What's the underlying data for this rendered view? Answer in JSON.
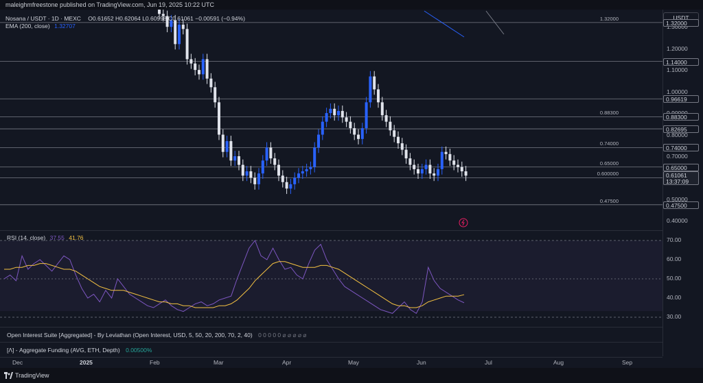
{
  "header": {
    "published": "maleighmfreestone published on TradingView.com, Jun 19, 2025 10:22 UTC"
  },
  "legend": {
    "symbol": "Nosana / USDT · 1D · MEXC",
    "ohlc": "O0.61652 H0.62064 L0.60998 C0.61061 −0.00591 (−0.94%)",
    "ema_label": "EMA (200, close)",
    "ema_value": "1.32707"
  },
  "currency_button": "USDT",
  "price_axis": {
    "labels": [
      "1.30000",
      "1.20000",
      "1.10000",
      "1.00000",
      "0.90000",
      "0.80000",
      "0.70000",
      "0.50000",
      "0.40000"
    ],
    "levels": [
      {
        "text": "1.32000",
        "line": "1.32000"
      },
      {
        "text": "1.14000",
        "line": ""
      },
      {
        "text": "0.96619",
        "line": ""
      },
      {
        "text": "0.88300",
        "line": "0.88300"
      },
      {
        "text": "0.82695",
        "line": ""
      },
      {
        "text": "0.74000",
        "line": "0.74000"
      },
      {
        "text": "0.65000",
        "line": "0.65000"
      },
      {
        "text": "0.60000",
        "line": "0.600000"
      },
      {
        "text": "0.47500",
        "line": "0.47500"
      }
    ],
    "live_price": "0.61061",
    "countdown": "13:37:09"
  },
  "rsi": {
    "label": "RSI (14, close)",
    "rsi_value": "37.55",
    "ma_value": "41.76",
    "axis": [
      "70.00",
      "60.00",
      "50.00",
      "40.00",
      "30.00"
    ]
  },
  "indicators": {
    "open_interest": "Open Interest Suite [Aggregated] - By Leviathan (Open Interest, USD, 5, 50, 20, 200, 70, 2, 40)",
    "open_interest_values": "0 0 0 0 0 ⌀ ⌀ ⌀ ⌀ ⌀",
    "funding": "[Λ] - Aggregate Funding (AVG, ETH, Depth)",
    "funding_value": "0.00500%"
  },
  "time_axis": [
    "Dec",
    "2025",
    "Feb",
    "Mar",
    "Apr",
    "May",
    "Jun",
    "Jul",
    "Aug",
    "Sep"
  ],
  "footer": "TradingView",
  "colors": {
    "up": "#2962ff",
    "down": "#e0e3eb",
    "rsi": "#7e57c2",
    "rsi_ma": "#f5c242",
    "ema": "#2962ff"
  },
  "chart_data": {
    "type": "candlestick",
    "price_range": [
      0.36,
      1.38
    ],
    "rsi_range": [
      25,
      75
    ],
    "rsi_bands": [
      30,
      50,
      70
    ],
    "closes": [
      1.36,
      1.35,
      1.3,
      1.33,
      1.22,
      1.31,
      1.29,
      1.15,
      1.13,
      1.1,
      1.08,
      1.15,
      1.06,
      1.02,
      0.95,
      0.8,
      0.72,
      0.77,
      0.68,
      0.7,
      0.66,
      0.61,
      0.63,
      0.6,
      0.57,
      0.62,
      0.68,
      0.74,
      0.69,
      0.66,
      0.61,
      0.58,
      0.55,
      0.57,
      0.6,
      0.62,
      0.63,
      0.64,
      0.65,
      0.74,
      0.8,
      0.86,
      0.9,
      0.92,
      0.89,
      0.91,
      0.88,
      0.86,
      0.83,
      0.8,
      0.78,
      0.83,
      0.95,
      1.07,
      1.01,
      0.95,
      0.89,
      0.86,
      0.82,
      0.79,
      0.76,
      0.73,
      0.69,
      0.66,
      0.64,
      0.62,
      0.64,
      0.66,
      0.62,
      0.61,
      0.64,
      0.72,
      0.71,
      0.68,
      0.66,
      0.65,
      0.63,
      0.61
    ],
    "rsi_values": [
      50,
      52,
      49,
      62,
      55,
      58,
      60,
      57,
      54,
      58,
      62,
      60,
      52,
      45,
      40,
      42,
      38,
      44,
      40,
      50,
      46,
      42,
      40,
      38,
      36,
      35,
      37,
      39,
      36,
      34,
      33,
      35,
      37,
      38,
      36,
      37,
      39,
      40,
      41,
      50,
      58,
      66,
      70,
      62,
      60,
      66,
      60,
      55,
      56,
      52,
      50,
      58,
      65,
      68,
      60,
      55,
      50,
      46,
      44,
      42,
      40,
      38,
      36,
      34,
      33,
      32,
      35,
      38,
      34,
      32,
      38,
      56,
      49,
      45,
      43,
      41,
      39,
      37.55
    ],
    "rsi_ma_values": [
      55,
      55,
      56,
      56,
      57,
      57,
      58,
      58,
      57,
      56,
      55,
      55,
      54,
      52,
      50,
      48,
      46,
      45,
      44,
      44,
      44,
      43,
      42,
      41,
      40,
      39,
      38,
      38,
      37,
      37,
      36,
      36,
      35,
      35,
      35,
      35,
      36,
      36,
      37,
      39,
      42,
      45,
      49,
      52,
      55,
      58,
      59,
      59,
      58,
      57,
      56,
      56,
      56,
      57,
      57,
      56,
      55,
      53,
      51,
      49,
      47,
      45,
      43,
      41,
      39,
      37,
      36,
      36,
      35,
      35,
      36,
      38,
      39,
      40,
      41,
      41,
      41,
      41.76
    ]
  }
}
